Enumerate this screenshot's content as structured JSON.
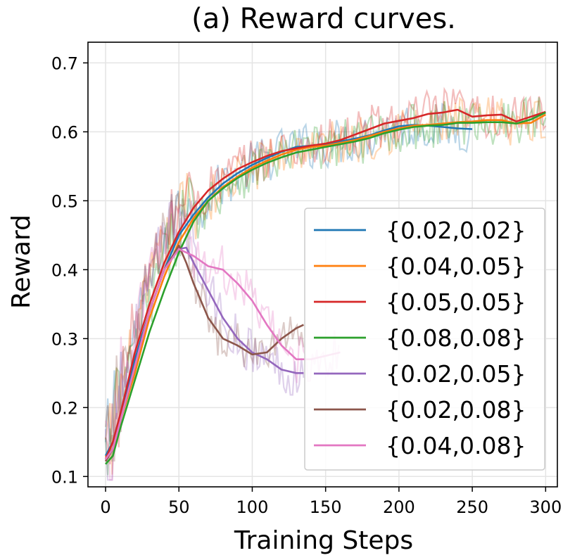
{
  "chart_data": {
    "type": "line",
    "title": "(a) Reward curves.",
    "xlabel": "Training Steps",
    "ylabel": "Reward",
    "xlim": [
      -12,
      308
    ],
    "ylim": [
      0.085,
      0.73
    ],
    "xticks": [
      0,
      50,
      100,
      150,
      200,
      250,
      300
    ],
    "yticks": [
      0.1,
      0.2,
      0.3,
      0.4,
      0.5,
      0.6,
      0.7
    ],
    "xtick_labels": [
      "0",
      "50",
      "100",
      "150",
      "200",
      "250",
      "300"
    ],
    "ytick_labels": [
      "0.1",
      "0.2",
      "0.3",
      "0.4",
      "0.5",
      "0.6",
      "0.7"
    ],
    "grid": true,
    "legend_position": "lower-right",
    "raw_series_shown": true,
    "series": [
      {
        "name": "{0.02,0.02}",
        "color": "#1f77b4",
        "x": [
          0,
          5,
          10,
          20,
          30,
          40,
          50,
          60,
          70,
          80,
          90,
          100,
          110,
          120,
          130,
          140,
          150,
          160,
          170,
          180,
          190,
          200,
          210,
          220,
          230,
          240,
          250
        ],
        "values": [
          0.13,
          0.15,
          0.19,
          0.27,
          0.34,
          0.4,
          0.45,
          0.48,
          0.505,
          0.525,
          0.54,
          0.552,
          0.562,
          0.571,
          0.578,
          0.58,
          0.582,
          0.586,
          0.59,
          0.595,
          0.602,
          0.608,
          0.61,
          0.609,
          0.607,
          0.605,
          0.604
        ]
      },
      {
        "name": "{0.04,0.05}",
        "color": "#ff7f0e",
        "x": [
          0,
          5,
          10,
          20,
          30,
          40,
          50,
          60,
          70,
          80,
          90,
          100,
          110,
          120,
          130,
          140,
          150,
          160,
          170,
          180,
          190,
          200,
          210,
          220,
          230,
          240,
          250,
          260,
          270,
          280,
          290,
          300
        ],
        "values": [
          0.128,
          0.14,
          0.18,
          0.25,
          0.33,
          0.39,
          0.44,
          0.475,
          0.5,
          0.52,
          0.535,
          0.548,
          0.558,
          0.567,
          0.574,
          0.578,
          0.58,
          0.584,
          0.588,
          0.594,
          0.6,
          0.605,
          0.609,
          0.61,
          0.612,
          0.614,
          0.615,
          0.617,
          0.617,
          0.612,
          0.613,
          0.625
        ]
      },
      {
        "name": "{0.05,0.05}",
        "color": "#d62728",
        "x": [
          0,
          5,
          10,
          20,
          30,
          40,
          50,
          60,
          70,
          80,
          90,
          100,
          110,
          120,
          130,
          140,
          150,
          160,
          170,
          180,
          190,
          200,
          210,
          220,
          230,
          240,
          250,
          260,
          270,
          280,
          290,
          300
        ],
        "values": [
          0.125,
          0.15,
          0.19,
          0.28,
          0.35,
          0.41,
          0.455,
          0.49,
          0.515,
          0.532,
          0.546,
          0.556,
          0.565,
          0.572,
          0.576,
          0.58,
          0.583,
          0.588,
          0.596,
          0.604,
          0.612,
          0.616,
          0.62,
          0.626,
          0.628,
          0.632,
          0.622,
          0.624,
          0.625,
          0.615,
          0.622,
          0.629
        ]
      },
      {
        "name": "{0.08,0.08}",
        "color": "#2ca02c",
        "x": [
          0,
          5,
          10,
          20,
          30,
          40,
          50,
          60,
          70,
          80,
          90,
          100,
          110,
          120,
          130,
          140,
          150,
          160,
          170,
          180,
          190,
          200,
          210,
          220,
          230,
          240,
          250,
          260,
          270,
          280,
          290,
          300
        ],
        "values": [
          0.118,
          0.13,
          0.17,
          0.24,
          0.31,
          0.37,
          0.425,
          0.47,
          0.5,
          0.518,
          0.533,
          0.545,
          0.555,
          0.563,
          0.57,
          0.574,
          0.578,
          0.582,
          0.586,
          0.591,
          0.598,
          0.603,
          0.607,
          0.609,
          0.61,
          0.613,
          0.613,
          0.614,
          0.614,
          0.612,
          0.618,
          0.628
        ]
      },
      {
        "name": "{0.02,0.05}",
        "color": "#9467bd",
        "x": [
          0,
          5,
          10,
          20,
          30,
          40,
          50,
          55,
          60,
          70,
          80,
          90,
          100,
          110,
          120,
          130,
          135
        ],
        "values": [
          0.125,
          0.14,
          0.18,
          0.26,
          0.34,
          0.4,
          0.43,
          0.432,
          0.41,
          0.37,
          0.33,
          0.3,
          0.28,
          0.27,
          0.255,
          0.25,
          0.25
        ]
      },
      {
        "name": "{0.02,0.08}",
        "color": "#8c564b",
        "x": [
          0,
          5,
          10,
          20,
          30,
          40,
          50,
          55,
          60,
          70,
          80,
          90,
          100,
          110,
          120,
          130,
          135
        ],
        "values": [
          0.122,
          0.14,
          0.18,
          0.26,
          0.34,
          0.4,
          0.435,
          0.41,
          0.38,
          0.33,
          0.3,
          0.29,
          0.277,
          0.28,
          0.3,
          0.315,
          0.32
        ]
      },
      {
        "name": "{0.04,0.08}",
        "color": "#e377c2",
        "x": [
          0,
          5,
          10,
          20,
          30,
          40,
          50,
          60,
          70,
          80,
          90,
          100,
          110,
          120,
          130,
          140,
          150,
          160
        ],
        "values": [
          0.125,
          0.14,
          0.18,
          0.26,
          0.34,
          0.4,
          0.43,
          0.42,
          0.405,
          0.4,
          0.38,
          0.355,
          0.32,
          0.29,
          0.27,
          0.27,
          0.275,
          0.28
        ]
      }
    ]
  }
}
